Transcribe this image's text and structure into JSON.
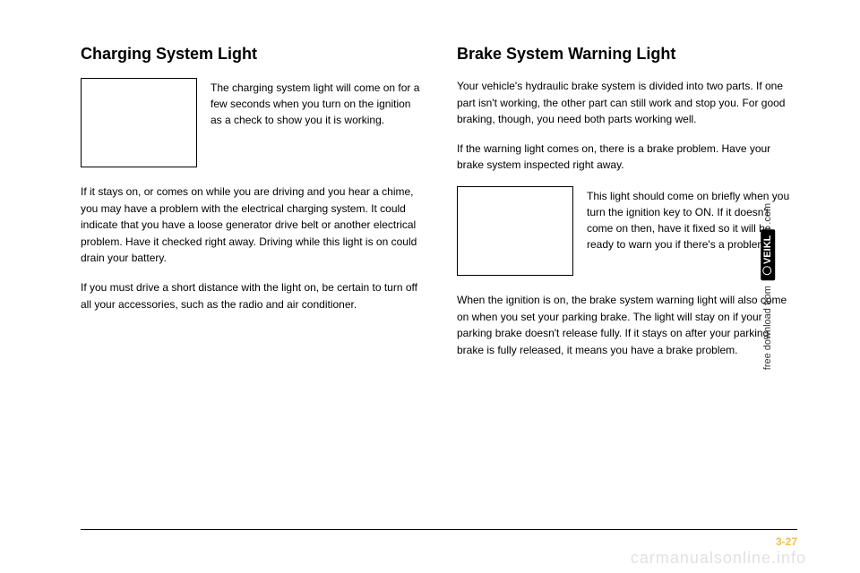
{
  "left": {
    "heading": "Charging System Light",
    "iconCaption": "The charging system light will come on for a few seconds when you turn on the ignition as a check to show you it is working.",
    "p1": "If it stays on, or comes on while you are driving and you hear a chime, you may have a problem with the electrical charging system. It could indicate that you have a loose generator drive belt or another electrical problem. Have it checked right away. Driving while this light is on could drain your battery.",
    "p2": "If you must drive a short distance with the light on, be certain to turn off all your accessories, such as the radio and air conditioner."
  },
  "right": {
    "heading": "Brake System Warning Light",
    "p1": "Your vehicle's hydraulic brake system is divided into two parts. If one part isn't working, the other part can still work and stop you. For good braking, though, you need both parts working well.",
    "p2": "If the warning light comes on, there is a brake problem. Have your brake system inspected right away.",
    "iconCaption": "This light should come on briefly when you turn the ignition key to ON. If it doesn't come on then, have it fixed so it will be ready to warn you if there's a problem.",
    "p3": "When the ignition is on, the brake system warning light will also come on when you set your parking brake. The light will stay on if your parking brake doesn't release fully. If it stays on after your parking brake is fully released, it means you have a brake problem."
  },
  "pageNum": "3-27",
  "watermarkBottom": "carmanualsonline.info",
  "watermarkSide": "free download from",
  "veikl": "VEIKL",
  "veiklSuffix": ".com"
}
